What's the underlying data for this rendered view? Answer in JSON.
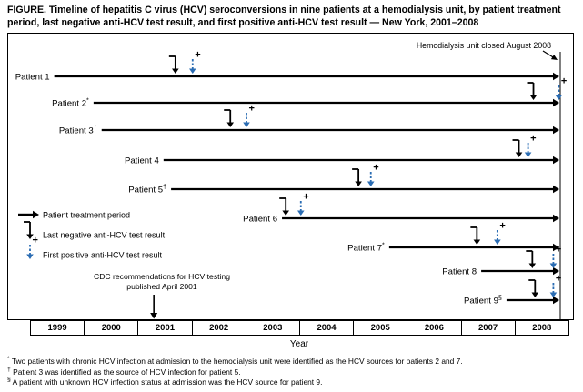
{
  "figure": {
    "title": "FIGURE. Timeline of hepatitis C virus (HCV) seroconversions in nine patients at a hemodialysis unit, by patient treatment period, last negative anti-HCV test result, and first positive anti-HCV test result — New York, 2001–2008",
    "x_axis_label": "Year"
  },
  "legend": {
    "treatment": "Patient treatment period",
    "last_negative": "Last negative anti-HCV test result",
    "first_positive": "First positive anti-HCV test result"
  },
  "annotations": {
    "unit_closed": "Hemodialysis unit closed August 2008",
    "cdc_line1": "CDC recommendations for HCV testing",
    "cdc_line2": "published April 2001",
    "cdc_arrow_year": 2001.3
  },
  "footnotes": [
    {
      "marker": "*",
      "text": "Two patients with chronic HCV infection at admission to the hemodialysis unit were identified as the HCV sources for patients 2 and 7."
    },
    {
      "marker": "†",
      "text": "Patient 3 was identified as the source of HCV infection for patient 5."
    },
    {
      "marker": "§",
      "text": "A patient with unknown HCV infection status at admission was the HCV source for patient 9."
    }
  ],
  "colors": {
    "first_positive_blue": "#2a6cb3",
    "line_black": "#000000"
  },
  "chart_data": {
    "type": "timeline",
    "title": "Timeline of HCV seroconversions in nine patients at a hemodialysis unit, New York, 2001–2008",
    "xlabel": "Year",
    "x_ticks": [
      1999,
      2000,
      2001,
      2002,
      2003,
      2004,
      2005,
      2006,
      2007,
      2008
    ],
    "x_range": [
      1999,
      2009
    ],
    "unit_closed_year": 2008.85,
    "note": "All treatment period arrows extend to the hemodialysis unit closure (August 2008); years are decimal estimates read from the axis.",
    "patients": [
      {
        "name": "Patient 1",
        "footnote_marker": "",
        "treatment_start": 1999.45,
        "treatment_end": 2008.85,
        "last_negative": 2001.7,
        "first_positive": 2002.02
      },
      {
        "name": "Patient 2",
        "footnote_marker": "*",
        "treatment_start": 2000.18,
        "treatment_end": 2008.85,
        "last_negative": 2008.35,
        "first_positive": 2008.82
      },
      {
        "name": "Patient 3",
        "footnote_marker": "†",
        "treatment_start": 2000.33,
        "treatment_end": 2008.85,
        "last_negative": 2002.72,
        "first_positive": 2003.02
      },
      {
        "name": "Patient 4",
        "footnote_marker": "",
        "treatment_start": 2001.48,
        "treatment_end": 2008.85,
        "last_negative": 2008.08,
        "first_positive": 2008.25
      },
      {
        "name": "Patient 5",
        "footnote_marker": "†",
        "treatment_start": 2001.62,
        "treatment_end": 2008.85,
        "last_negative": 2005.1,
        "first_positive": 2005.33
      },
      {
        "name": "Patient 6",
        "footnote_marker": "",
        "treatment_start": 2003.68,
        "treatment_end": 2008.85,
        "last_negative": 2003.75,
        "first_positive": 2004.03
      },
      {
        "name": "Patient 7",
        "footnote_marker": "*",
        "treatment_start": 2005.67,
        "treatment_end": 2008.85,
        "last_negative": 2007.3,
        "first_positive": 2007.68
      },
      {
        "name": "Patient 8",
        "footnote_marker": "",
        "treatment_start": 2007.38,
        "treatment_end": 2008.85,
        "last_negative": 2008.33,
        "first_positive": 2008.72
      },
      {
        "name": "Patient 9",
        "footnote_marker": "§",
        "treatment_start": 2007.85,
        "treatment_end": 2008.85,
        "last_negative": 2008.38,
        "first_positive": 2008.72
      }
    ]
  }
}
